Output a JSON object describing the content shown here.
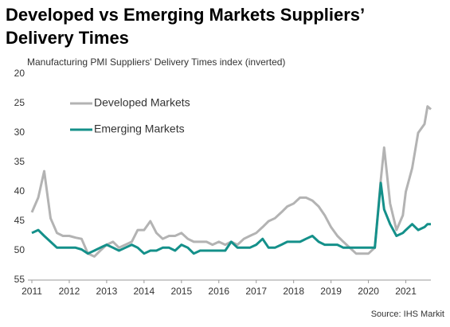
{
  "chart_data": {
    "type": "line",
    "title": "Developed vs Emerging Markets Suppliers’ Delivery Times",
    "subtitle": "Manufacturing PMI Suppliers' Delivery Times index (inverted)",
    "source": "Source: IHS Markit",
    "x": [
      2011,
      2011.17,
      2011.33,
      2011.5,
      2011.67,
      2011.83,
      2012,
      2012.17,
      2012.33,
      2012.5,
      2012.67,
      2012.83,
      2013,
      2013.17,
      2013.33,
      2013.5,
      2013.67,
      2013.83,
      2014,
      2014.17,
      2014.33,
      2014.5,
      2014.67,
      2014.83,
      2015,
      2015.17,
      2015.33,
      2015.5,
      2015.67,
      2015.83,
      2016,
      2016.17,
      2016.33,
      2016.5,
      2016.67,
      2016.83,
      2017,
      2017.17,
      2017.33,
      2017.5,
      2017.67,
      2017.83,
      2018,
      2018.17,
      2018.33,
      2018.5,
      2018.67,
      2018.83,
      2019,
      2019.17,
      2019.33,
      2019.5,
      2019.67,
      2019.83,
      2020,
      2020.17,
      2020.33,
      2020.42,
      2020.58,
      2020.75,
      2020.92,
      2021,
      2021.17,
      2021.33,
      2021.5,
      2021.58,
      2021.67
    ],
    "series": [
      {
        "name": "Developed Markets",
        "color": "#b3b3b3",
        "values": [
          43.5,
          41,
          36.5,
          44.5,
          47,
          47.5,
          47.5,
          47.8,
          48,
          50.5,
          51,
          50,
          49,
          48.5,
          49.5,
          49,
          48.5,
          46.5,
          46.5,
          45,
          47,
          48,
          47.5,
          47.5,
          47,
          48,
          48.5,
          48.5,
          48.5,
          49,
          48.5,
          49,
          48.5,
          49,
          48,
          47.5,
          47,
          46,
          45,
          44.5,
          43.5,
          42.5,
          42,
          41,
          41,
          41.5,
          42.5,
          44,
          46,
          47.5,
          48.5,
          49.5,
          50.5,
          50.5,
          50.5,
          49.5,
          38,
          32.5,
          42,
          46.5,
          44,
          40,
          36,
          30,
          28.5,
          25.5,
          26
        ]
      },
      {
        "name": "Emerging Markets",
        "color": "#14908a",
        "values": [
          47,
          46.5,
          47.5,
          48.5,
          49.5,
          49.5,
          49.5,
          49.5,
          49.8,
          50.5,
          50,
          49.5,
          49,
          49.5,
          50,
          49.5,
          49,
          49.5,
          50.5,
          50,
          50,
          49.5,
          49.5,
          50,
          49,
          49.5,
          50.5,
          50,
          50,
          50,
          50,
          50,
          48.5,
          49.5,
          49.5,
          49.5,
          49,
          48,
          49.5,
          49.5,
          49,
          48.5,
          48.5,
          48.5,
          48,
          47.5,
          48.5,
          49,
          49,
          49,
          49.5,
          49.5,
          49.5,
          49.5,
          49.5,
          49.5,
          38.5,
          43,
          45.5,
          47.5,
          47,
          46.5,
          45.5,
          46.5,
          46,
          45.5,
          45.5
        ]
      }
    ],
    "xlim": [
      2011,
      2021.67
    ],
    "xticks": [
      2011,
      2012,
      2013,
      2014,
      2015,
      2016,
      2017,
      2018,
      2019,
      2020,
      2021
    ],
    "ylim": [
      20,
      55
    ],
    "yticks": [
      20,
      25,
      30,
      35,
      40,
      45,
      50,
      55
    ],
    "y_inverted": true,
    "grid": false,
    "legend": "upper left"
  }
}
